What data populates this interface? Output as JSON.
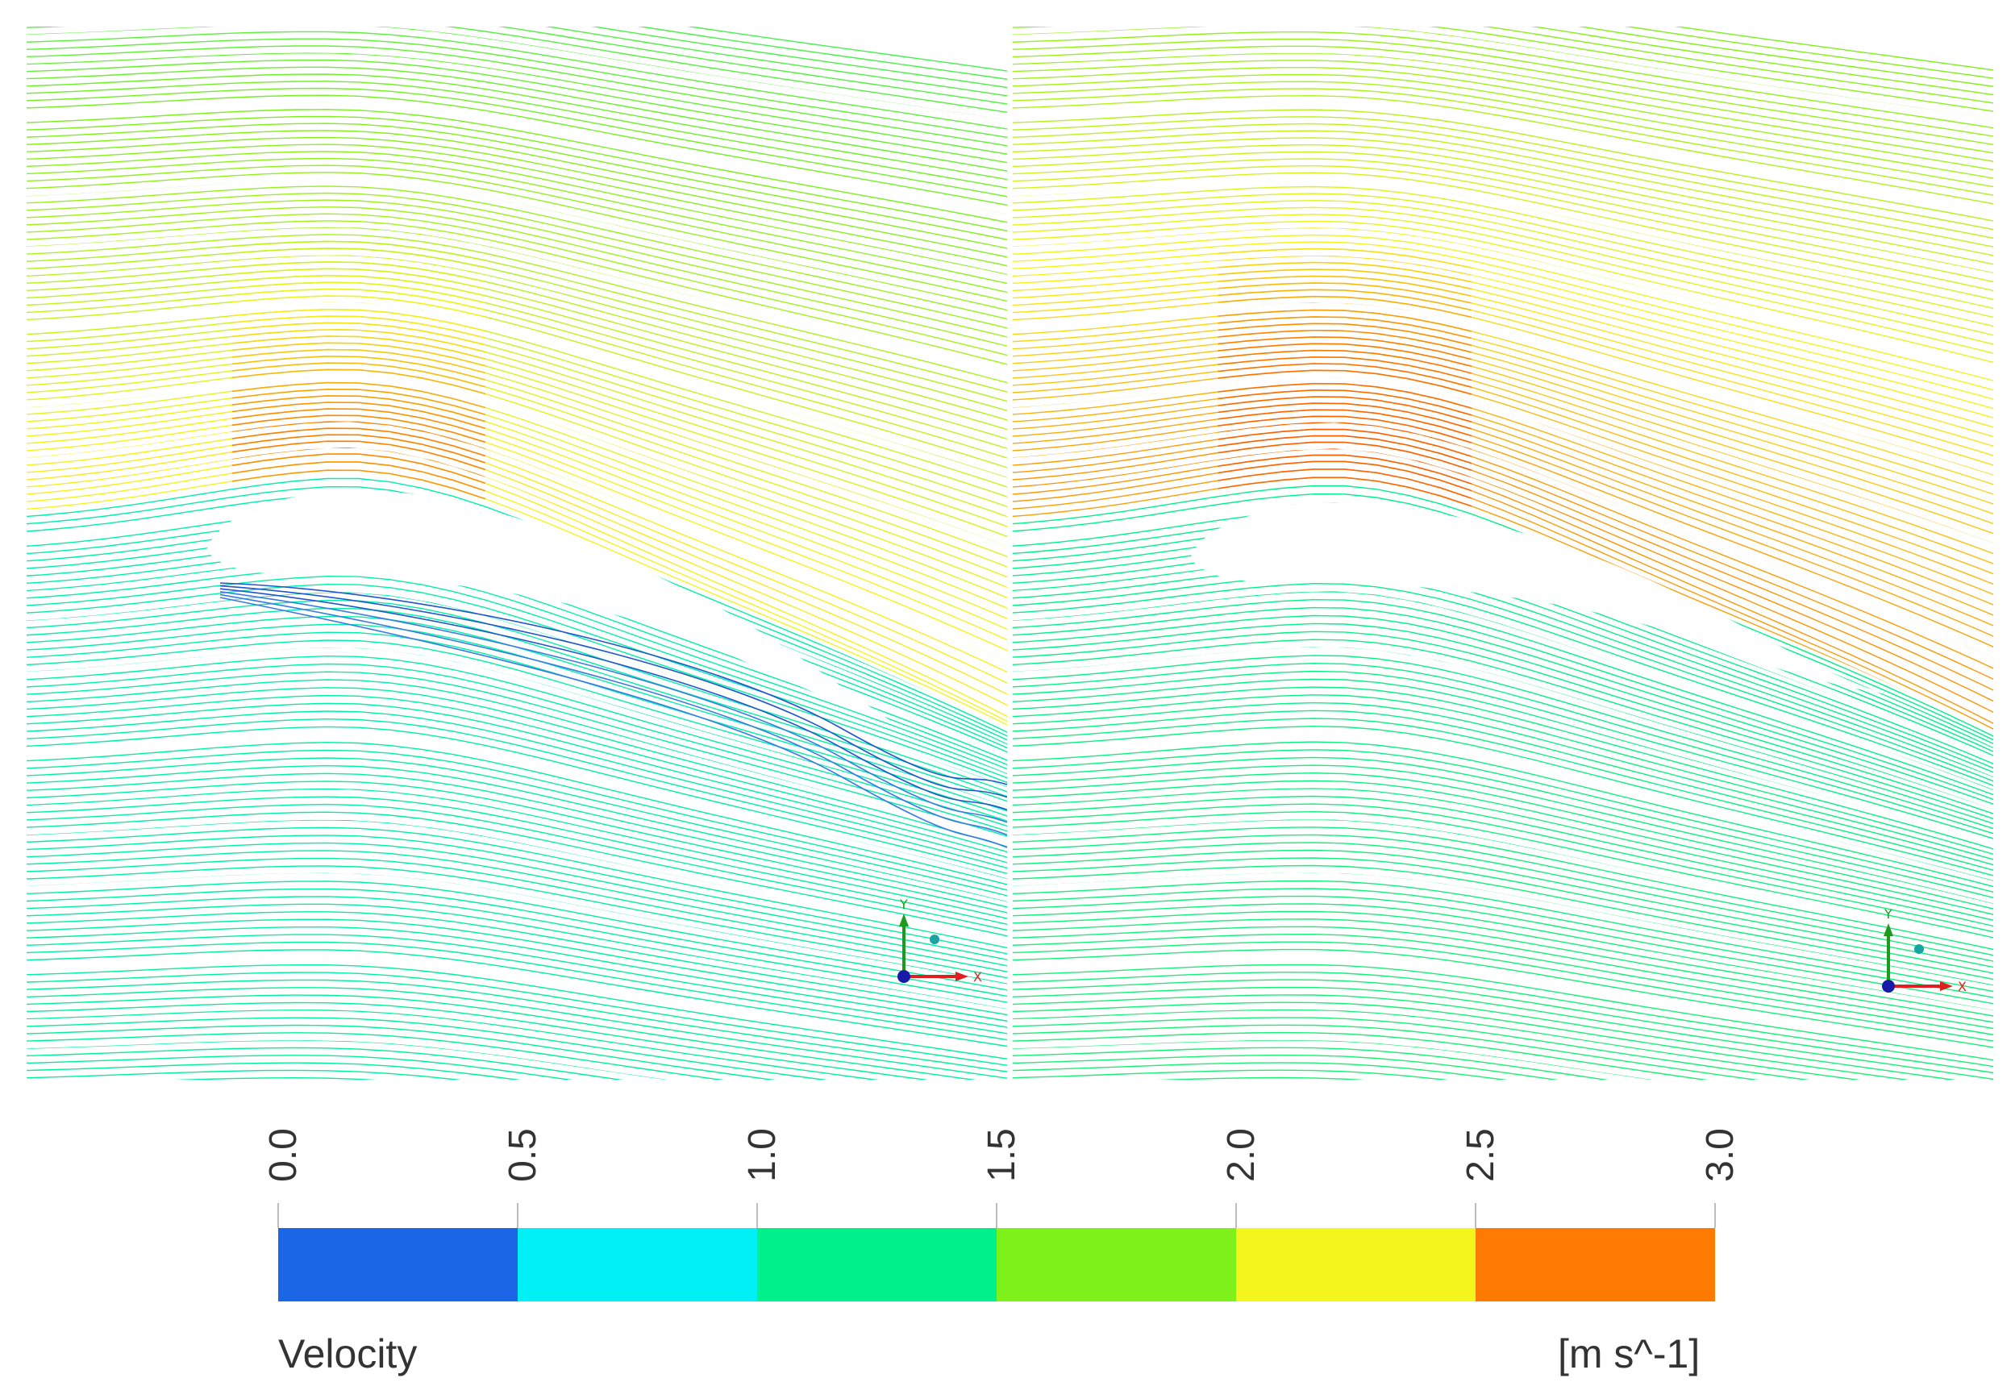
{
  "panels": [
    {
      "name": "left",
      "axes": {
        "y": "Y",
        "x": "X"
      },
      "speed_scale": 0.85,
      "separation": true
    },
    {
      "name": "right",
      "axes": {
        "y": "Y",
        "x": "X"
      },
      "speed_scale": 1.0,
      "separation": false
    }
  ],
  "legend": {
    "title": "Velocity",
    "units": "[m s^-1]",
    "ticks": [
      "0.0",
      "0.5",
      "1.0",
      "1.5",
      "2.0",
      "2.5",
      "3.0"
    ],
    "colors": [
      "#1a66e6",
      "#00f0f5",
      "#00f08c",
      "#7ef01a",
      "#f5f51e",
      "#ff7a00"
    ]
  }
}
